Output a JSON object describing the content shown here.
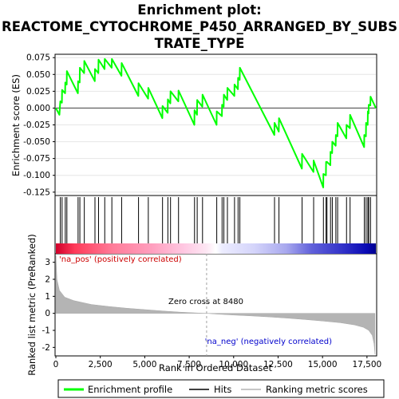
{
  "chart_data": {
    "type": "line",
    "title_lines": [
      "Enrichment plot:",
      "REACTOME_CYTOCHROME_P450_ARRANGED_BY_SUBS",
      "TRATE_TYPE"
    ],
    "ylabel_top": "Enrichment score (ES)",
    "ylabel_bottom": "Ranked list metric (PreRanked)",
    "xlabel": "Rank in Ordered Dataset",
    "x_ticks": [
      "0",
      "2,500",
      "5,000",
      "7,500",
      "10,000",
      "12,500",
      "15,000",
      "17,500"
    ],
    "x_tick_values": [
      0,
      2500,
      5000,
      7500,
      10000,
      12500,
      15000,
      17500
    ],
    "xlim": [
      0,
      18000
    ],
    "es_ylim": [
      -0.13,
      0.08
    ],
    "es_ticks": [
      "0.075",
      "0.050",
      "0.025",
      "0.000",
      "-0.025",
      "-0.050",
      "-0.075",
      "-0.100",
      "-0.125"
    ],
    "es_tick_values": [
      0.075,
      0.05,
      0.025,
      0.0,
      -0.025,
      -0.05,
      -0.075,
      -0.1,
      -0.125
    ],
    "metric_ylim": [
      -2.5,
      3.5
    ],
    "metric_ticks": [
      "3",
      "2",
      "1",
      "0",
      "-1",
      "-2"
    ],
    "metric_tick_values": [
      3,
      2,
      1,
      0,
      -1,
      -2
    ],
    "zero_cross_label": "Zero cross at 8480",
    "zero_cross": 8480,
    "pos_label": "'na_pos' (positively correlated)",
    "neg_label": "'na_neg' (negatively correlated)",
    "hits": [
      250,
      350,
      530,
      620,
      1250,
      1350,
      1600,
      2200,
      2400,
      2750,
      3150,
      3700,
      4650,
      5200,
      6000,
      6300,
      6450,
      6900,
      7800,
      7950,
      8250,
      9050,
      9350,
      9450,
      9650,
      10050,
      10250,
      10350,
      12300,
      12550,
      13850,
      14500,
      15050,
      15200,
      15250,
      15450,
      15550,
      15750,
      15850,
      16350,
      16550,
      17350,
      17450,
      17550,
      17600,
      17700
    ],
    "running_es": [
      [
        0,
        0.0
      ],
      [
        200,
        -0.01
      ],
      [
        250,
        0.01
      ],
      [
        340,
        0.008
      ],
      [
        350,
        0.027
      ],
      [
        520,
        0.022
      ],
      [
        530,
        0.038
      ],
      [
        610,
        0.035
      ],
      [
        620,
        0.055
      ],
      [
        1240,
        0.022
      ],
      [
        1250,
        0.04
      ],
      [
        1340,
        0.038
      ],
      [
        1350,
        0.06
      ],
      [
        1590,
        0.052
      ],
      [
        1600,
        0.07
      ],
      [
        2190,
        0.04
      ],
      [
        2200,
        0.058
      ],
      [
        2390,
        0.052
      ],
      [
        2400,
        0.072
      ],
      [
        2740,
        0.058
      ],
      [
        2750,
        0.073
      ],
      [
        3140,
        0.06
      ],
      [
        3150,
        0.073
      ],
      [
        3690,
        0.048
      ],
      [
        3700,
        0.067
      ],
      [
        4640,
        0.018
      ],
      [
        4650,
        0.037
      ],
      [
        5190,
        0.014
      ],
      [
        5200,
        0.03
      ],
      [
        5990,
        -0.015
      ],
      [
        6000,
        0.003
      ],
      [
        6290,
        -0.007
      ],
      [
        6300,
        0.013
      ],
      [
        6440,
        0.007
      ],
      [
        6450,
        0.025
      ],
      [
        6890,
        0.01
      ],
      [
        6900,
        0.026
      ],
      [
        7790,
        -0.025
      ],
      [
        7800,
        -0.003
      ],
      [
        7940,
        -0.01
      ],
      [
        7950,
        0.012
      ],
      [
        8240,
        0.002
      ],
      [
        8250,
        0.02
      ],
      [
        9040,
        -0.025
      ],
      [
        9050,
        -0.005
      ],
      [
        9340,
        -0.012
      ],
      [
        9350,
        0.005
      ],
      [
        9440,
        0.002
      ],
      [
        9450,
        0.02
      ],
      [
        9640,
        0.012
      ],
      [
        9650,
        0.03
      ],
      [
        10040,
        0.018
      ],
      [
        10050,
        0.035
      ],
      [
        10240,
        0.028
      ],
      [
        10250,
        0.045
      ],
      [
        10340,
        0.042
      ],
      [
        10350,
        0.06
      ],
      [
        12290,
        -0.04
      ],
      [
        12300,
        -0.022
      ],
      [
        12540,
        -0.035
      ],
      [
        12550,
        -0.015
      ],
      [
        13840,
        -0.09
      ],
      [
        13850,
        -0.068
      ],
      [
        14490,
        -0.095
      ],
      [
        14500,
        -0.078
      ],
      [
        15040,
        -0.118
      ],
      [
        15050,
        -0.098
      ],
      [
        15190,
        -0.1
      ],
      [
        15200,
        -0.08
      ],
      [
        15240,
        -0.08
      ],
      [
        15250,
        -0.08
      ],
      [
        15440,
        -0.085
      ],
      [
        15450,
        -0.065
      ],
      [
        15540,
        -0.067
      ],
      [
        15550,
        -0.05
      ],
      [
        15740,
        -0.056
      ],
      [
        15750,
        -0.04
      ],
      [
        15840,
        -0.042
      ],
      [
        15850,
        -0.022
      ],
      [
        16340,
        -0.045
      ],
      [
        16350,
        -0.025
      ],
      [
        16540,
        -0.03
      ],
      [
        16550,
        -0.01
      ],
      [
        17340,
        -0.058
      ],
      [
        17350,
        -0.04
      ],
      [
        17440,
        -0.042
      ],
      [
        17450,
        -0.022
      ],
      [
        17540,
        -0.025
      ],
      [
        17550,
        -0.005
      ],
      [
        17590,
        -0.008
      ],
      [
        17600,
        0.005
      ],
      [
        17690,
        0.004
      ],
      [
        17700,
        0.017
      ],
      [
        18000,
        0.0
      ]
    ],
    "metric_curve": [
      [
        0,
        3.4
      ],
      [
        60,
        2.0
      ],
      [
        200,
        1.35
      ],
      [
        500,
        0.95
      ],
      [
        1000,
        0.75
      ],
      [
        2000,
        0.52
      ],
      [
        3000,
        0.4
      ],
      [
        4000,
        0.3
      ],
      [
        5000,
        0.22
      ],
      [
        6000,
        0.14
      ],
      [
        7000,
        0.07
      ],
      [
        8000,
        0.02
      ],
      [
        8480,
        0.0
      ],
      [
        9000,
        -0.04
      ],
      [
        10000,
        -0.1
      ],
      [
        11000,
        -0.15
      ],
      [
        12000,
        -0.21
      ],
      [
        13000,
        -0.28
      ],
      [
        14000,
        -0.36
      ],
      [
        15000,
        -0.45
      ],
      [
        16000,
        -0.55
      ],
      [
        16800,
        -0.68
      ],
      [
        17300,
        -0.82
      ],
      [
        17600,
        -1.0
      ],
      [
        17800,
        -1.3
      ],
      [
        17900,
        -1.8
      ],
      [
        17950,
        -2.4
      ]
    ],
    "band_stops": [
      [
        0.0,
        "#d0002a"
      ],
      [
        0.06,
        "#ff3b5a"
      ],
      [
        0.18,
        "#ff7d9a"
      ],
      [
        0.3,
        "#ff9fbe"
      ],
      [
        0.4,
        "#ffc8e2"
      ],
      [
        0.47,
        "#fde6f3"
      ],
      [
        0.5,
        "#ffffff"
      ],
      [
        0.52,
        "#ececff"
      ],
      [
        0.62,
        "#d4d4fa"
      ],
      [
        0.72,
        "#a8a8ee"
      ],
      [
        0.8,
        "#6060da"
      ],
      [
        0.9,
        "#3030c8"
      ],
      [
        0.97,
        "#0a0ab4"
      ],
      [
        1.0,
        "#000090"
      ]
    ],
    "legend": [
      "Enrichment profile",
      "Hits",
      "Ranking metric scores"
    ],
    "colors": {
      "es_line": "#00ff00",
      "hits": "#000000",
      "metric_fill": "#b4b4b4",
      "pos_text": "#cc0000",
      "neg_text": "#0000cc",
      "zero_line": "#a0a0a0"
    }
  }
}
